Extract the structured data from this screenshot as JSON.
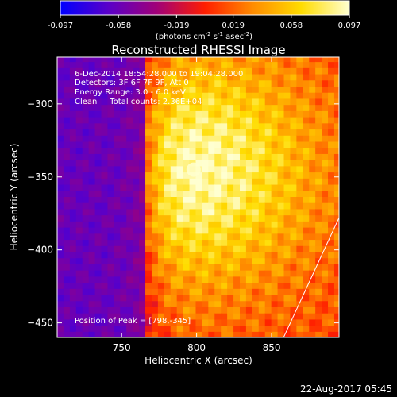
{
  "colorbar": {
    "tick_labels": [
      "-0.097",
      "-0.058",
      "-0.019",
      "0.019",
      "0.058",
      "0.097"
    ],
    "tick_values": [
      -0.097,
      -0.058,
      -0.019,
      0.019,
      0.058,
      0.097
    ],
    "range": [
      -0.097,
      0.097
    ],
    "units_prefix": "(photons cm",
    "units_sup1": "-2",
    "units_mid": " s",
    "units_sup2": "-1",
    "units_mid2": " asec",
    "units_sup3": "-2",
    "units_suffix": ")",
    "colors": [
      "#0000ff",
      "#5a00c8",
      "#a00078",
      "#ff1e00",
      "#ff8c00",
      "#ffdc00",
      "#ffffd0"
    ]
  },
  "chart_data": {
    "type": "heatmap",
    "title": "Reconstructed RHESSI Image",
    "xlabel": "Heliocentric X (arcsec)",
    "ylabel": "Heliocentric Y (arcsec)",
    "xlim": [
      707,
      895
    ],
    "ylim": [
      -460,
      -268
    ],
    "xticks": [
      750,
      800,
      850
    ],
    "xtick_labels": [
      "750",
      "800",
      "850"
    ],
    "yticks": [
      -300,
      -350,
      -400,
      -450
    ],
    "ytick_labels": [
      "−300",
      "−350",
      "−400",
      "−450"
    ],
    "peak": [
      798,
      -345
    ],
    "grid": false,
    "colormap": "rainbow-hot"
  },
  "annotations": {
    "time_range": "6-Dec-2014 18:54:28.000 to 19:04:28.000",
    "detectors": "Detectors: 3F 6F 7F 9F, Att 0",
    "energy": "Energy Range: 3.0 - 6.0 keV",
    "method": "Clean     Total counts: 2.36E+04",
    "peak": "Position of Peak = [798,-345]"
  },
  "footer_date": "22-Aug-2017 05:45"
}
